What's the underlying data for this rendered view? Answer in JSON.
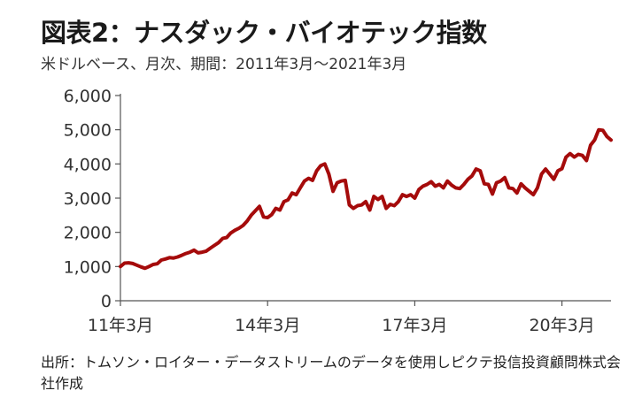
{
  "chart_data": {
    "type": "line",
    "title": "図表2：ナスダック・バイオテック指数",
    "subtitle": "米ドルベース、月次、期間：2011年3月～2021年3月",
    "xlabel": "",
    "ylabel": "",
    "x_tick_labels": [
      "11年3月",
      "14年3月",
      "17年3月",
      "20年3月"
    ],
    "x_tick_positions": [
      0,
      36,
      72,
      108
    ],
    "y_tick_labels": [
      "0",
      "1,000",
      "2,000",
      "3,000",
      "4,000",
      "5,000",
      "6,000"
    ],
    "y_tick_values": [
      0,
      1000,
      2000,
      3000,
      4000,
      5000,
      6000
    ],
    "ylim": [
      0,
      6000
    ],
    "xlim": [
      0,
      120
    ],
    "grid": false,
    "series": [
      {
        "color": "#a50b0b",
        "x": [
          0,
          1,
          2,
          3,
          4,
          5,
          6,
          7,
          8,
          9,
          10,
          11,
          12,
          13,
          14,
          15,
          16,
          17,
          18,
          19,
          20,
          21,
          22,
          23,
          24,
          25,
          26,
          27,
          28,
          29,
          30,
          31,
          32,
          33,
          34,
          35,
          36,
          37,
          38,
          39,
          40,
          41,
          42,
          43,
          44,
          45,
          46,
          47,
          48,
          49,
          50,
          51,
          52,
          53,
          54,
          55,
          56,
          57,
          58,
          59,
          60,
          61,
          62,
          63,
          64,
          65,
          66,
          67,
          68,
          69,
          70,
          71,
          72,
          73,
          74,
          75,
          76,
          77,
          78,
          79,
          80,
          81,
          82,
          83,
          84,
          85,
          86,
          87,
          88,
          89,
          90,
          91,
          92,
          93,
          94,
          95,
          96,
          97,
          98,
          99,
          100,
          101,
          102,
          103,
          104,
          105,
          106,
          107,
          108,
          109,
          110,
          111,
          112,
          113,
          114,
          115,
          116,
          117,
          118,
          119,
          120
        ],
        "values": [
          1000,
          1100,
          1110,
          1090,
          1040,
          990,
          950,
          1000,
          1060,
          1080,
          1190,
          1220,
          1260,
          1250,
          1280,
          1330,
          1380,
          1420,
          1480,
          1400,
          1420,
          1450,
          1540,
          1620,
          1700,
          1820,
          1850,
          1980,
          2060,
          2120,
          2200,
          2330,
          2500,
          2630,
          2760,
          2450,
          2430,
          2520,
          2700,
          2650,
          2900,
          2950,
          3150,
          3100,
          3300,
          3500,
          3580,
          3520,
          3800,
          3950,
          4000,
          3700,
          3200,
          3450,
          3500,
          3520,
          2800,
          2700,
          2780,
          2800,
          2900,
          2650,
          3050,
          2960,
          3050,
          2700,
          2820,
          2780,
          2900,
          3100,
          3050,
          3100,
          3000,
          3250,
          3350,
          3400,
          3480,
          3350,
          3400,
          3300,
          3500,
          3380,
          3300,
          3280,
          3400,
          3550,
          3650,
          3850,
          3800,
          3420,
          3400,
          3120,
          3450,
          3500,
          3600,
          3300,
          3280,
          3150,
          3420,
          3300,
          3200,
          3100,
          3300,
          3700,
          3850,
          3700,
          3550,
          3800,
          3860,
          4200,
          4300,
          4200,
          4280,
          4250,
          4100,
          4550,
          4700,
          5000,
          4980,
          4800,
          4700
        ]
      }
    ]
  },
  "source_note": "出所：トムソン・ロイター・データストリームのデータを使用しピクテ投信投資顧問株式会社作成"
}
